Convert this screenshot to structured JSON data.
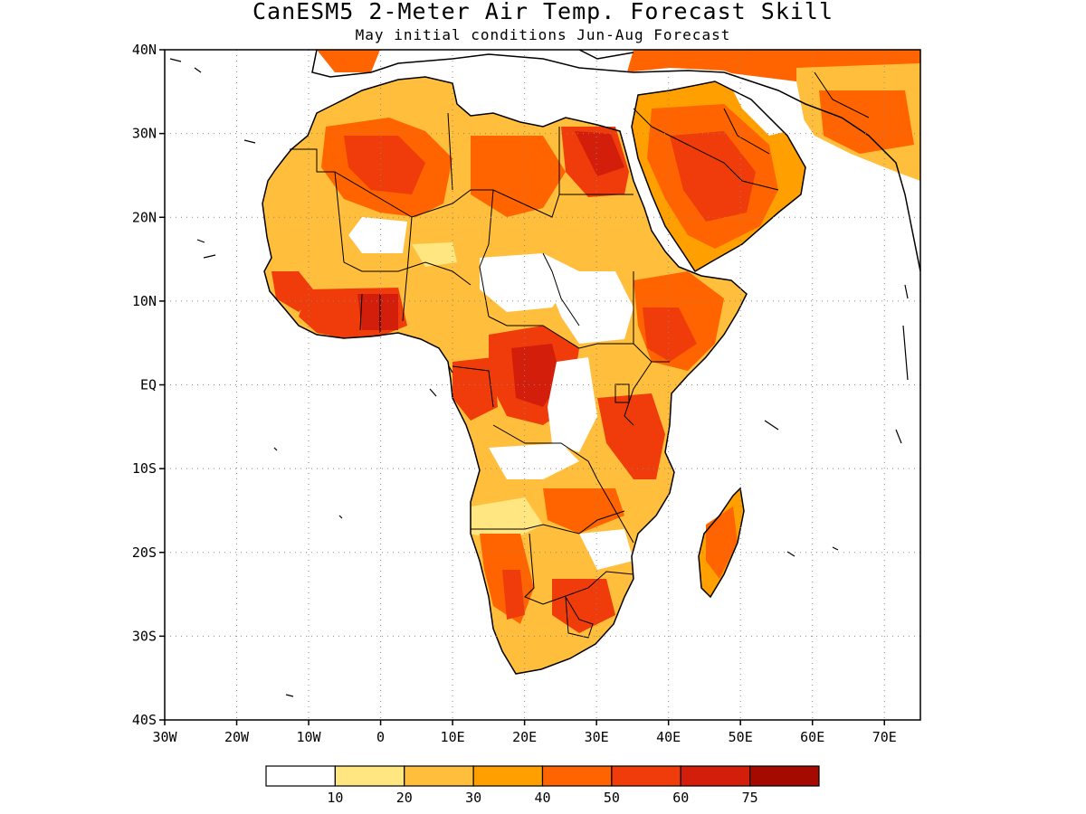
{
  "title": "CanESM5 2-Meter Air Temp. Forecast Skill",
  "subtitle": "May initial conditions  Jun-Aug Forecast",
  "map": {
    "lon_range": [
      -30,
      75
    ],
    "lat_range": [
      -40,
      40
    ],
    "lat_ticks": [
      {
        "value": 40,
        "label": "40N"
      },
      {
        "value": 30,
        "label": "30N"
      },
      {
        "value": 20,
        "label": "20N"
      },
      {
        "value": 10,
        "label": "10N"
      },
      {
        "value": 0,
        "label": "EQ"
      },
      {
        "value": -10,
        "label": "10S"
      },
      {
        "value": -20,
        "label": "20S"
      },
      {
        "value": -30,
        "label": "30S"
      },
      {
        "value": -40,
        "label": "40S"
      }
    ],
    "lon_ticks": [
      {
        "value": -30,
        "label": "30W"
      },
      {
        "value": -20,
        "label": "20W"
      },
      {
        "value": -10,
        "label": "10W"
      },
      {
        "value": 0,
        "label": "0"
      },
      {
        "value": 10,
        "label": "10E"
      },
      {
        "value": 20,
        "label": "20E"
      },
      {
        "value": 30,
        "label": "30E"
      },
      {
        "value": 40,
        "label": "40E"
      },
      {
        "value": 50,
        "label": "50E"
      },
      {
        "value": 60,
        "label": "60E"
      },
      {
        "value": 70,
        "label": "70E"
      }
    ],
    "grid": "dotted"
  },
  "colorbar": {
    "colors": [
      "#ffffff",
      "#ffe680",
      "#ffbe3c",
      "#ffa000",
      "#ff6400",
      "#f03c0a",
      "#d21e0a",
      "#a50a00"
    ],
    "labels": [
      "10",
      "20",
      "30",
      "40",
      "50",
      "60",
      "75"
    ]
  }
}
